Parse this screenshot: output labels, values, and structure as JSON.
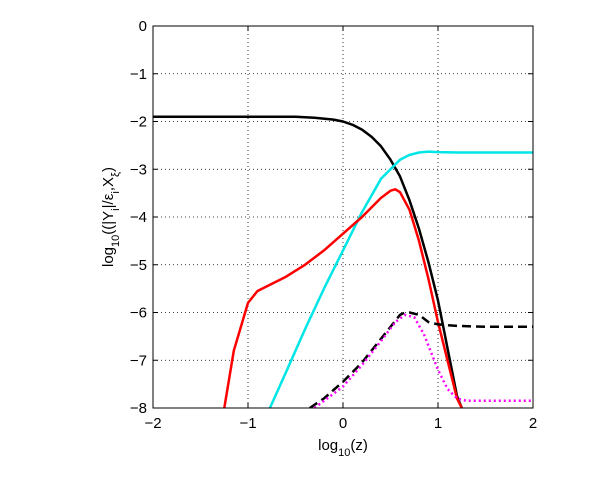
{
  "chart_data": {
    "type": "line",
    "title": "",
    "xlabel": {
      "base": "log",
      "sub": "10",
      "rest": "(z)"
    },
    "ylabel": {
      "base": "log",
      "sub": "10",
      "rest": "((|Y",
      "sub2": "i",
      "rest2": "|/ε",
      "sub3": "i",
      "rest3": ",X",
      "sub4": "ξ",
      "rest4": ")"
    },
    "xlim": [
      -2,
      2
    ],
    "ylim": [
      -8,
      0
    ],
    "xticks": [
      "−2",
      "−1",
      "0",
      "1",
      "2"
    ],
    "yticks": [
      "0",
      "−1",
      "−2",
      "−3",
      "−4",
      "−5",
      "−6",
      "−7",
      "−8"
    ],
    "grid": true,
    "series": [
      {
        "color": "#000000",
        "style": "solid",
        "x": [
          -2.0,
          -1.0,
          -0.5,
          -0.3,
          -0.1,
          0.0,
          0.1,
          0.2,
          0.3,
          0.4,
          0.5,
          0.6,
          0.7,
          0.8,
          0.9,
          1.0,
          1.05,
          1.1,
          1.15,
          1.2,
          1.25
        ],
        "y": [
          -1.9,
          -1.9,
          -1.9,
          -1.92,
          -1.96,
          -2.0,
          -2.07,
          -2.17,
          -2.32,
          -2.52,
          -2.8,
          -3.15,
          -3.65,
          -4.25,
          -4.95,
          -5.75,
          -6.25,
          -6.75,
          -7.25,
          -7.75,
          -8.0
        ]
      },
      {
        "color": "#00e5e5",
        "style": "solid",
        "x": [
          -0.77,
          -0.6,
          -0.4,
          -0.2,
          0.0,
          0.2,
          0.4,
          0.6,
          0.7,
          0.8,
          0.9,
          1.0,
          1.2,
          1.5,
          2.0
        ],
        "y": [
          -8.0,
          -7.25,
          -6.35,
          -5.5,
          -4.7,
          -3.9,
          -3.2,
          -2.8,
          -2.7,
          -2.65,
          -2.63,
          -2.64,
          -2.65,
          -2.65,
          -2.65
        ]
      },
      {
        "color": "#ff0000",
        "style": "solid",
        "x": [
          -1.25,
          -1.15,
          -1.0,
          -0.9,
          -0.8,
          -0.6,
          -0.4,
          -0.2,
          0.0,
          0.2,
          0.4,
          0.5,
          0.55,
          0.6,
          0.7,
          0.8,
          0.9,
          1.0,
          1.1,
          1.2,
          1.25
        ],
        "y": [
          -8.0,
          -6.8,
          -5.8,
          -5.55,
          -5.45,
          -5.25,
          -5.0,
          -4.7,
          -4.35,
          -4.0,
          -3.6,
          -3.45,
          -3.42,
          -3.48,
          -3.85,
          -4.5,
          -5.3,
          -6.2,
          -7.0,
          -7.8,
          -8.0
        ]
      },
      {
        "color": "#000000",
        "style": "dashed",
        "x": [
          -0.35,
          -0.2,
          0.0,
          0.2,
          0.4,
          0.6,
          0.65,
          0.7,
          0.8,
          0.9,
          1.0,
          1.2,
          1.5,
          2.0
        ],
        "y": [
          -8.0,
          -7.8,
          -7.45,
          -7.05,
          -6.55,
          -6.05,
          -6.0,
          -6.0,
          -6.05,
          -6.2,
          -6.25,
          -6.28,
          -6.3,
          -6.3
        ]
      },
      {
        "color": "#ff00ff",
        "style": "dotted",
        "x": [
          -0.3,
          -0.1,
          0.0,
          0.2,
          0.4,
          0.55,
          0.65,
          0.75,
          0.85,
          1.0,
          1.1,
          1.2,
          1.3,
          1.5,
          2.0
        ],
        "y": [
          -8.0,
          -7.7,
          -7.55,
          -7.1,
          -6.6,
          -6.2,
          -6.05,
          -6.1,
          -6.45,
          -7.2,
          -7.6,
          -7.8,
          -7.85,
          -7.85,
          -7.85
        ]
      }
    ]
  }
}
